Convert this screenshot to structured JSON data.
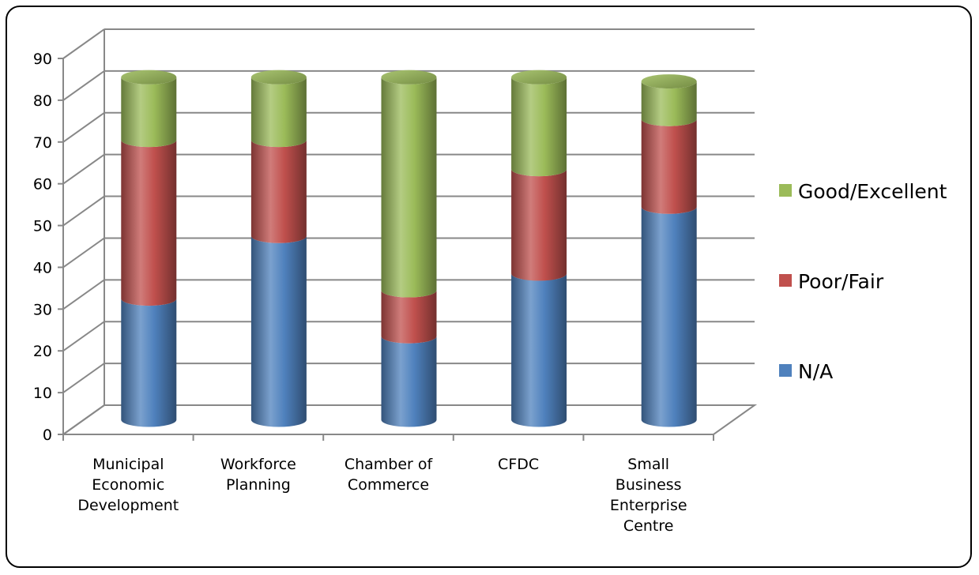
{
  "chart_data": {
    "type": "bar",
    "stacked": true,
    "style": "3d-cylinder",
    "categories": [
      [
        "Municipal",
        "Economic",
        "Development"
      ],
      [
        "Workforce",
        "Planning"
      ],
      [
        "Chamber of",
        "Commerce"
      ],
      [
        "CFDC"
      ],
      [
        "Small",
        "Business",
        "Enterprise",
        "Centre"
      ]
    ],
    "series": [
      {
        "name": "N/A",
        "values": [
          29,
          44,
          20,
          35,
          51
        ],
        "color": "#4f81bd"
      },
      {
        "name": "Poor/Fair",
        "values": [
          38,
          23,
          11,
          25,
          21
        ],
        "color": "#c0504d"
      },
      {
        "name": "Good/Excellent",
        "values": [
          15,
          15,
          51,
          22,
          9
        ],
        "color": "#9bbb59"
      }
    ],
    "ylim": [
      0,
      90
    ],
    "yticks": [
      0,
      10,
      20,
      30,
      40,
      50,
      60,
      70,
      80,
      90
    ],
    "grid": true,
    "legend_position": "right"
  }
}
